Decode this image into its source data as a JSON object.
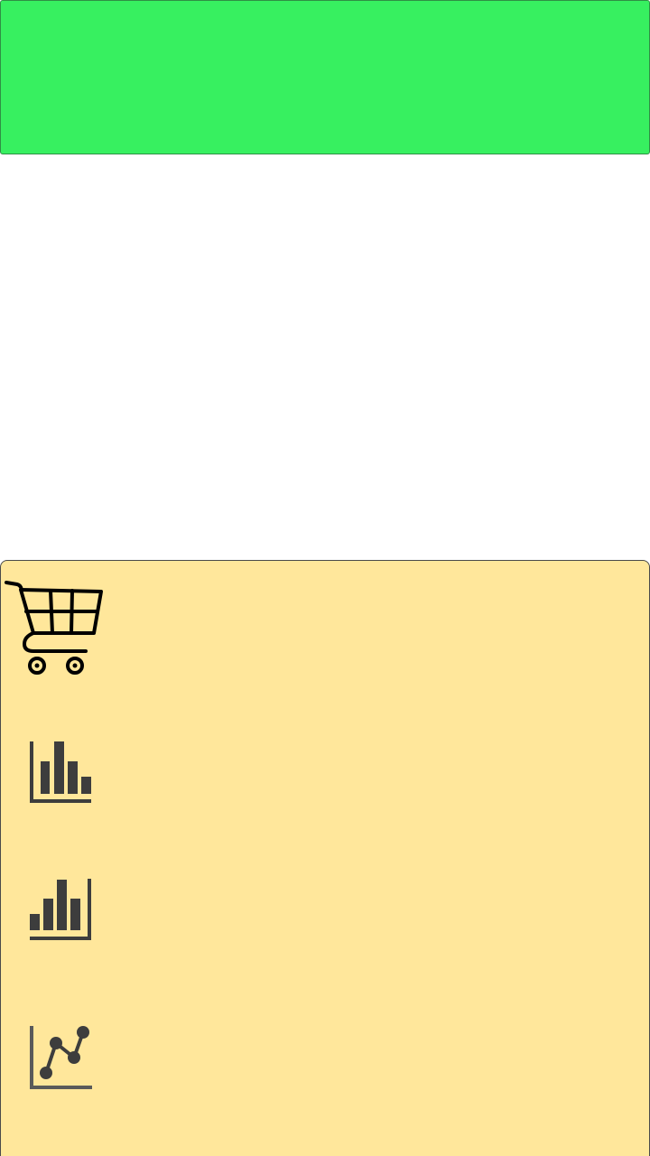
{
  "colors": {
    "banner_bg": "#37f060",
    "panel_bg": "#ffe79b",
    "icon_dark": "#3d3d3d",
    "cart_stroke": "#000000"
  },
  "panel": {
    "items": [
      {
        "icon": "shopping-cart-icon"
      },
      {
        "icon": "bar-chart-descending-icon"
      },
      {
        "icon": "bar-chart-ascending-icon"
      },
      {
        "icon": "line-chart-icon"
      }
    ]
  }
}
